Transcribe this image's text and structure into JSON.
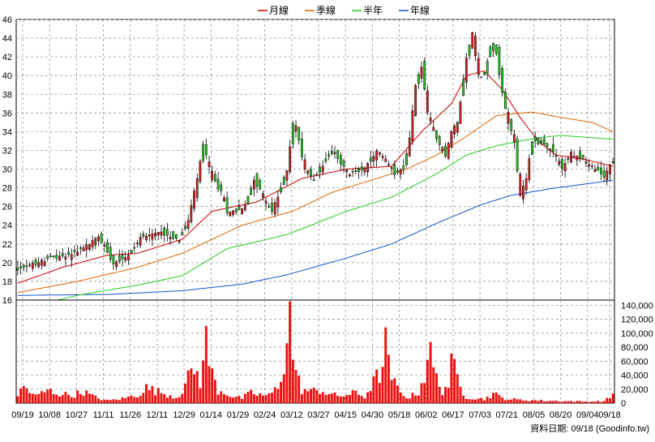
{
  "chart_data": {
    "type": "candlestick",
    "legend": [
      {
        "name": "月線",
        "color": "#cc0000"
      },
      {
        "name": "季線",
        "color": "#dd6600"
      },
      {
        "name": "半年",
        "color": "#22cc22"
      },
      {
        "name": "年線",
        "color": "#1155cc"
      }
    ],
    "x_tick_labels": [
      "09/19",
      "10/08",
      "10/27",
      "11/11",
      "11/26",
      "12/11",
      "12/29",
      "01/14",
      "01/29",
      "02/24",
      "03/12",
      "03/27",
      "04/15",
      "04/30",
      "05/18",
      "06/02",
      "06/17",
      "07/03",
      "07/21",
      "08/05",
      "08/20",
      "09/04",
      "09/18"
    ],
    "price_axis": {
      "min": 16,
      "max": 46,
      "ticks": [
        16,
        18,
        20,
        22,
        24,
        26,
        28,
        30,
        32,
        34,
        36,
        38,
        40,
        42,
        44,
        46
      ]
    },
    "volume_axis": {
      "min": 0,
      "max": 140000,
      "ticks": [
        "0",
        "20,000",
        "40,000",
        "60,000",
        "80,000",
        "100,000",
        "120,000",
        "140,000"
      ]
    },
    "price_anchors": [
      [
        0,
        19
      ],
      [
        6,
        19.8
      ],
      [
        12,
        20.5
      ],
      [
        18,
        20.8
      ],
      [
        24,
        21.8
      ],
      [
        28,
        22.8
      ],
      [
        33,
        20
      ],
      [
        38,
        20.8
      ],
      [
        43,
        23
      ],
      [
        49,
        23.2
      ],
      [
        55,
        22.5
      ],
      [
        58,
        24.5
      ],
      [
        61,
        29
      ],
      [
        63,
        32.5
      ],
      [
        66,
        29
      ],
      [
        69,
        27.5
      ],
      [
        71,
        25.5
      ],
      [
        74,
        25.5
      ],
      [
        77,
        26
      ],
      [
        80,
        29
      ],
      [
        83,
        27
      ],
      [
        86,
        25.5
      ],
      [
        88,
        27
      ],
      [
        91,
        30
      ],
      [
        93,
        35
      ],
      [
        95,
        33
      ],
      [
        97,
        30
      ],
      [
        100,
        29
      ],
      [
        103,
        30.5
      ],
      [
        106,
        32
      ],
      [
        109,
        30.5
      ],
      [
        112,
        29.5
      ],
      [
        115,
        29.8
      ],
      [
        118,
        30.5
      ],
      [
        121,
        32
      ],
      [
        124,
        31
      ],
      [
        127,
        29.5
      ],
      [
        130,
        30
      ],
      [
        132,
        33.5
      ],
      [
        134,
        39
      ],
      [
        136,
        41
      ],
      [
        138,
        36
      ],
      [
        140,
        34
      ],
      [
        142,
        32.5
      ],
      [
        144,
        31.5
      ],
      [
        146,
        34
      ],
      [
        148,
        35
      ],
      [
        151,
        42
      ],
      [
        153,
        44.5
      ],
      [
        155,
        40
      ],
      [
        157,
        40
      ],
      [
        159,
        43
      ],
      [
        161,
        42.5
      ],
      [
        163,
        38
      ],
      [
        165,
        35
      ],
      [
        167,
        33
      ],
      [
        169,
        27
      ],
      [
        171,
        29
      ],
      [
        173,
        33
      ],
      [
        176,
        32.8
      ],
      [
        180,
        32
      ],
      [
        183,
        30
      ],
      [
        186,
        31.7
      ],
      [
        190,
        31
      ],
      [
        194,
        30
      ],
      [
        197,
        29.2
      ],
      [
        199,
        30.5
      ]
    ],
    "volume_anchors": [
      [
        0,
        12000
      ],
      [
        2,
        26000
      ],
      [
        6,
        11000
      ],
      [
        10,
        20000
      ],
      [
        14,
        15000
      ],
      [
        18,
        12000
      ],
      [
        22,
        18000
      ],
      [
        26,
        9000
      ],
      [
        30,
        4000
      ],
      [
        35,
        7000
      ],
      [
        40,
        13000
      ],
      [
        43,
        24000
      ],
      [
        47,
        18000
      ],
      [
        50,
        14000
      ],
      [
        53,
        9000
      ],
      [
        55,
        20000
      ],
      [
        57,
        38000
      ],
      [
        59,
        55000
      ],
      [
        61,
        35000
      ],
      [
        63,
        96000
      ],
      [
        65,
        45000
      ],
      [
        67,
        20000
      ],
      [
        69,
        18000
      ],
      [
        72,
        10000
      ],
      [
        75,
        8000
      ],
      [
        78,
        16000
      ],
      [
        81,
        13000
      ],
      [
        84,
        12000
      ],
      [
        87,
        25000
      ],
      [
        89,
        65000
      ],
      [
        90,
        100000
      ],
      [
        91,
        138000
      ],
      [
        92,
        82000
      ],
      [
        93,
        45000
      ],
      [
        95,
        22000
      ],
      [
        98,
        18000
      ],
      [
        101,
        21000
      ],
      [
        104,
        15000
      ],
      [
        107,
        11000
      ],
      [
        110,
        13000
      ],
      [
        113,
        16000
      ],
      [
        116,
        10000
      ],
      [
        118,
        26000
      ],
      [
        120,
        40000
      ],
      [
        122,
        55000
      ],
      [
        123,
        92000
      ],
      [
        124,
        58000
      ],
      [
        126,
        30000
      ],
      [
        128,
        15000
      ],
      [
        131,
        9000
      ],
      [
        134,
        18000
      ],
      [
        136,
        44000
      ],
      [
        137,
        80000
      ],
      [
        138,
        74000
      ],
      [
        140,
        38000
      ],
      [
        142,
        20000
      ],
      [
        144,
        30000
      ],
      [
        145,
        58000
      ],
      [
        146,
        52000
      ],
      [
        148,
        25000
      ],
      [
        150,
        10000
      ],
      [
        153,
        8000
      ],
      [
        156,
        6000
      ],
      [
        159,
        15000
      ],
      [
        162,
        8000
      ],
      [
        165,
        6000
      ],
      [
        168,
        5000
      ],
      [
        172,
        4500
      ],
      [
        176,
        3800
      ],
      [
        180,
        3500
      ],
      [
        184,
        3000
      ],
      [
        188,
        2600
      ],
      [
        192,
        2500
      ],
      [
        196,
        3200
      ],
      [
        198,
        9000
      ],
      [
        199,
        16000
      ]
    ],
    "ma_month_anchors": [
      [
        0,
        17.8
      ],
      [
        15,
        19.5
      ],
      [
        30,
        20.8
      ],
      [
        40,
        21
      ],
      [
        55,
        22.5
      ],
      [
        65,
        25.5
      ],
      [
        80,
        26.5
      ],
      [
        95,
        29
      ],
      [
        110,
        30
      ],
      [
        125,
        30.3
      ],
      [
        135,
        34
      ],
      [
        145,
        37
      ],
      [
        150,
        40
      ],
      [
        156,
        40.5
      ],
      [
        162,
        38.5
      ],
      [
        168,
        35.5
      ],
      [
        174,
        33
      ],
      [
        180,
        31.5
      ],
      [
        190,
        31
      ],
      [
        199,
        30.3
      ]
    ],
    "ma_season_anchors": [
      [
        0,
        16.8
      ],
      [
        20,
        18
      ],
      [
        40,
        19.5
      ],
      [
        55,
        21
      ],
      [
        75,
        24
      ],
      [
        92,
        25.5
      ],
      [
        105,
        27.5
      ],
      [
        120,
        29
      ],
      [
        130,
        30
      ],
      [
        140,
        31.5
      ],
      [
        150,
        33.5
      ],
      [
        160,
        35.7
      ],
      [
        165,
        35.9
      ],
      [
        172,
        36.1
      ],
      [
        182,
        35.5
      ],
      [
        192,
        35
      ],
      [
        199,
        34
      ]
    ],
    "ma_half_anchors": [
      [
        0,
        15
      ],
      [
        20,
        16.5
      ],
      [
        40,
        17.6
      ],
      [
        55,
        18.6
      ],
      [
        70,
        21.5
      ],
      [
        90,
        23
      ],
      [
        110,
        25.5
      ],
      [
        125,
        27
      ],
      [
        140,
        29.5
      ],
      [
        150,
        31.5
      ],
      [
        160,
        32.5
      ],
      [
        168,
        33
      ],
      [
        175,
        33.4
      ],
      [
        182,
        33.6
      ],
      [
        190,
        33.4
      ],
      [
        199,
        33.2
      ]
    ],
    "ma_year_anchors": [
      [
        0,
        16.5
      ],
      [
        30,
        16.6
      ],
      [
        55,
        17
      ],
      [
        75,
        17.7
      ],
      [
        90,
        18.7
      ],
      [
        110,
        20.5
      ],
      [
        125,
        22
      ],
      [
        140,
        24.2
      ],
      [
        155,
        26.2
      ],
      [
        165,
        27.2
      ],
      [
        180,
        28
      ],
      [
        199,
        28.8
      ]
    ],
    "footer": "資料日期: 09/18  (Goodinfo.tw)"
  }
}
